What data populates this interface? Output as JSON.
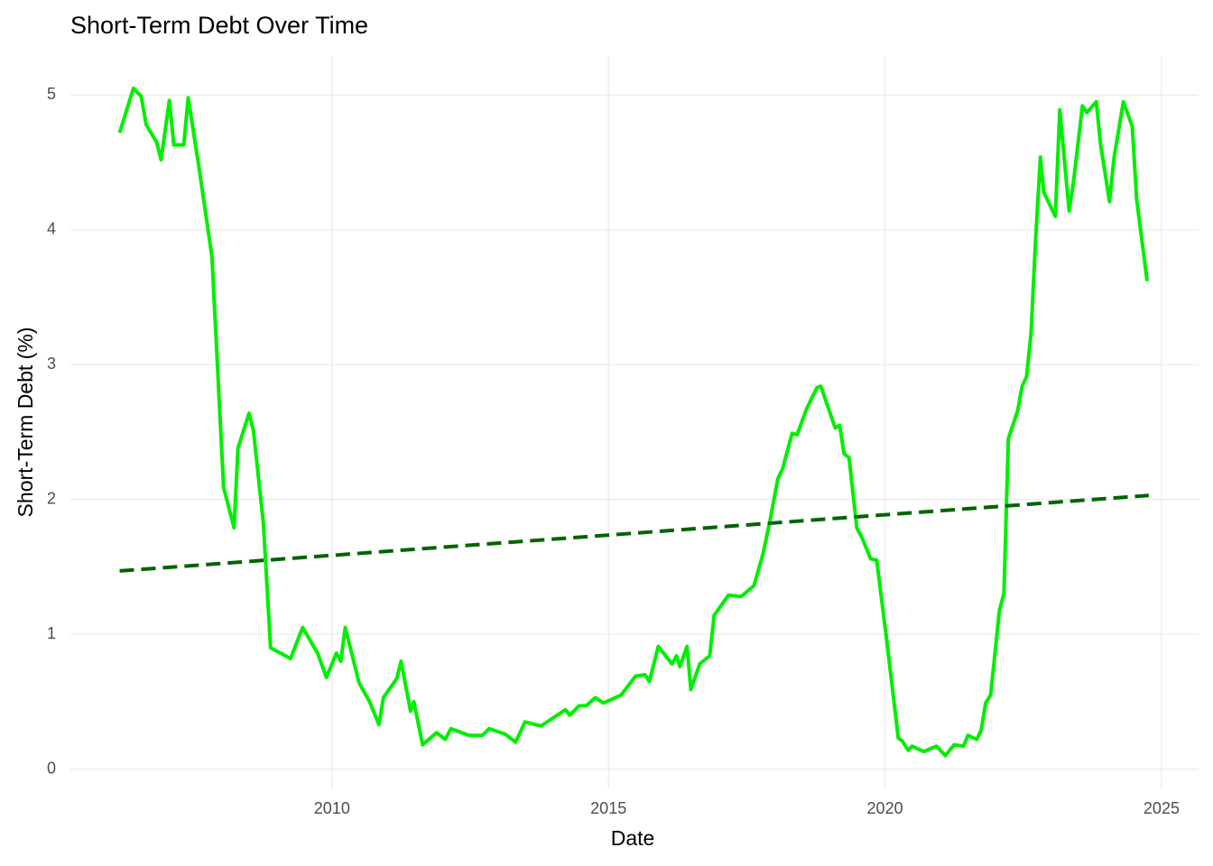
{
  "chart_data": {
    "type": "line",
    "title": "Short-Term Debt Over Time",
    "x_label": "Date",
    "y_label": "Short-Term Debt (%)",
    "xlim": [
      2005.27,
      2025.67
    ],
    "xticks": [
      2010,
      2015,
      2020,
      2025
    ],
    "ylim": [
      -0.15,
      5.29
    ],
    "yticks": [
      0,
      1,
      2,
      3,
      4,
      5
    ],
    "grid": true,
    "series": [
      {
        "color": "#00ee00",
        "dash": false,
        "x": [
          2006.16,
          2006.41,
          2006.55,
          2006.64,
          2006.83,
          2006.91,
          2007.06,
          2007.14,
          2007.32,
          2007.4,
          2007.6,
          2007.83,
          2008.04,
          2008.23,
          2008.3,
          2008.5,
          2008.58,
          2008.76,
          2008.89,
          2009.25,
          2009.47,
          2009.74,
          2009.9,
          2010.08,
          2010.16,
          2010.24,
          2010.49,
          2010.68,
          2010.85,
          2010.93,
          2011.17,
          2011.25,
          2011.42,
          2011.48,
          2011.64,
          2011.89,
          2012.05,
          2012.15,
          2012.48,
          2012.72,
          2012.84,
          2013.13,
          2013.32,
          2013.49,
          2013.78,
          2014.22,
          2014.3,
          2014.47,
          2014.6,
          2014.76,
          2014.91,
          2015.23,
          2015.49,
          2015.66,
          2015.74,
          2015.9,
          2016.15,
          2016.23,
          2016.29,
          2016.42,
          2016.49,
          2016.65,
          2016.83,
          2016.91,
          2017.17,
          2017.4,
          2017.63,
          2017.79,
          2017.91,
          2018.06,
          2018.15,
          2018.32,
          2018.41,
          2018.58,
          2018.77,
          2018.84,
          2019.1,
          2019.18,
          2019.26,
          2019.35,
          2019.49,
          2019.58,
          2019.74,
          2019.85,
          2020.03,
          2020.24,
          2020.31,
          2020.42,
          2020.49,
          2020.7,
          2020.93,
          2021.09,
          2021.25,
          2021.42,
          2021.5,
          2021.66,
          2021.74,
          2021.82,
          2021.91,
          2022.07,
          2022.15,
          2022.23,
          2022.4,
          2022.48,
          2022.56,
          2022.64,
          2022.72,
          2022.81,
          2022.87,
          2023.08,
          2023.16,
          2023.33,
          2023.41,
          2023.57,
          2023.65,
          2023.82,
          2023.9,
          2024.06,
          2024.14,
          2024.31,
          2024.47,
          2024.55,
          2024.74
        ],
        "values": [
          4.72,
          5.05,
          4.99,
          4.78,
          4.65,
          4.52,
          4.96,
          4.63,
          4.63,
          4.98,
          4.45,
          3.8,
          2.09,
          1.79,
          2.38,
          2.64,
          2.51,
          1.82,
          0.9,
          0.82,
          1.05,
          0.86,
          0.68,
          0.86,
          0.8,
          1.05,
          0.64,
          0.5,
          0.33,
          0.53,
          0.67,
          0.8,
          0.43,
          0.5,
          0.18,
          0.27,
          0.22,
          0.3,
          0.25,
          0.25,
          0.3,
          0.26,
          0.2,
          0.35,
          0.32,
          0.44,
          0.4,
          0.47,
          0.47,
          0.53,
          0.49,
          0.55,
          0.69,
          0.7,
          0.65,
          0.91,
          0.78,
          0.84,
          0.76,
          0.91,
          0.59,
          0.78,
          0.84,
          1.14,
          1.29,
          1.28,
          1.36,
          1.59,
          1.82,
          2.15,
          2.23,
          2.49,
          2.48,
          2.67,
          2.83,
          2.84,
          2.53,
          2.55,
          2.34,
          2.31,
          1.79,
          1.72,
          1.56,
          1.55,
          0.96,
          0.23,
          0.21,
          0.14,
          0.17,
          0.13,
          0.17,
          0.1,
          0.18,
          0.17,
          0.25,
          0.22,
          0.29,
          0.49,
          0.55,
          1.18,
          1.3,
          2.45,
          2.66,
          2.84,
          2.91,
          3.23,
          3.9,
          4.54,
          4.28,
          4.1,
          4.89,
          4.14,
          4.36,
          4.92,
          4.87,
          4.95,
          4.63,
          4.21,
          4.53,
          4.95,
          4.77,
          4.23,
          3.62
        ]
      },
      {
        "color": "#006400",
        "dash": true,
        "x": [
          2006.16,
          2024.77
        ],
        "values": [
          1.47,
          2.03
        ]
      }
    ]
  }
}
